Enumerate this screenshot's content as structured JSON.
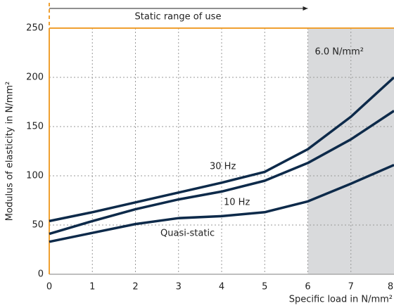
{
  "chart_data": {
    "type": "line",
    "xlabel": "Specific load in N/mm²",
    "ylabel": "Modulus of elasticity in N/mm²",
    "range_label": "Static range of use",
    "region_label": "6.0 N/mm²",
    "shaded_region": [
      6,
      8
    ],
    "x": [
      0,
      1,
      2,
      3,
      4,
      5,
      6,
      7,
      8
    ],
    "series": [
      {
        "name": "30 Hz",
        "color": "#0d2a4a",
        "values": [
          54,
          63,
          73,
          83,
          93,
          104,
          127,
          160,
          200
        ]
      },
      {
        "name": "10 Hz",
        "color": "#0d2a4a",
        "values": [
          41,
          54,
          66,
          76,
          84,
          95,
          113,
          137,
          166
        ]
      },
      {
        "name": "Quasi-static",
        "color": "#0d2a4a",
        "values": [
          33,
          42,
          51,
          57,
          59,
          63,
          74,
          92,
          111
        ]
      }
    ],
    "xlim": [
      0,
      8
    ],
    "ylim": [
      0,
      250
    ],
    "xticks": [
      0,
      1,
      2,
      3,
      4,
      5,
      6,
      7,
      8
    ],
    "yticks": [
      0,
      50,
      100,
      150,
      200,
      250
    ],
    "grid": true
  }
}
